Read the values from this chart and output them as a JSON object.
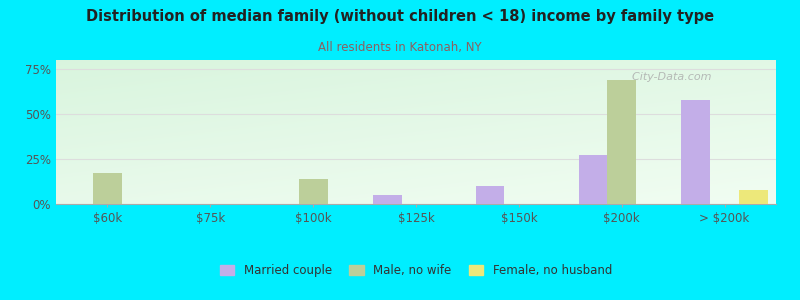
{
  "title": "Distribution of median family (without children < 18) income by family type",
  "subtitle": "All residents in Katonah, NY",
  "categories": [
    "$60k",
    "$75k",
    "$100k",
    "$125k",
    "$150k",
    "$200k",
    "> $200k"
  ],
  "married_couple": [
    0,
    0,
    0,
    5,
    10,
    27,
    58
  ],
  "male_no_wife": [
    17,
    0,
    14,
    0,
    0,
    69,
    0
  ],
  "female_no_husband": [
    0,
    0,
    0,
    0,
    0,
    0,
    8
  ],
  "bar_width": 0.28,
  "colors": {
    "married_couple": "#c3aee8",
    "male_no_wife": "#bccf9a",
    "female_no_husband": "#ede87a"
  },
  "background_color": "#00eeff",
  "plot_bg_color": "#f0faf0",
  "ylim": [
    0,
    80
  ],
  "yticks": [
    0,
    25,
    50,
    75
  ],
  "ytick_labels": [
    "0%",
    "25%",
    "50%",
    "75%"
  ],
  "watermark": "City-Data.com",
  "watermark_icon": "⛳",
  "legend_labels": [
    "Married couple",
    "Male, no wife",
    "Female, no husband"
  ],
  "title_color": "#222222",
  "subtitle_color": "#8b6060",
  "grid_color": "#dddddd",
  "tick_color": "#555555"
}
